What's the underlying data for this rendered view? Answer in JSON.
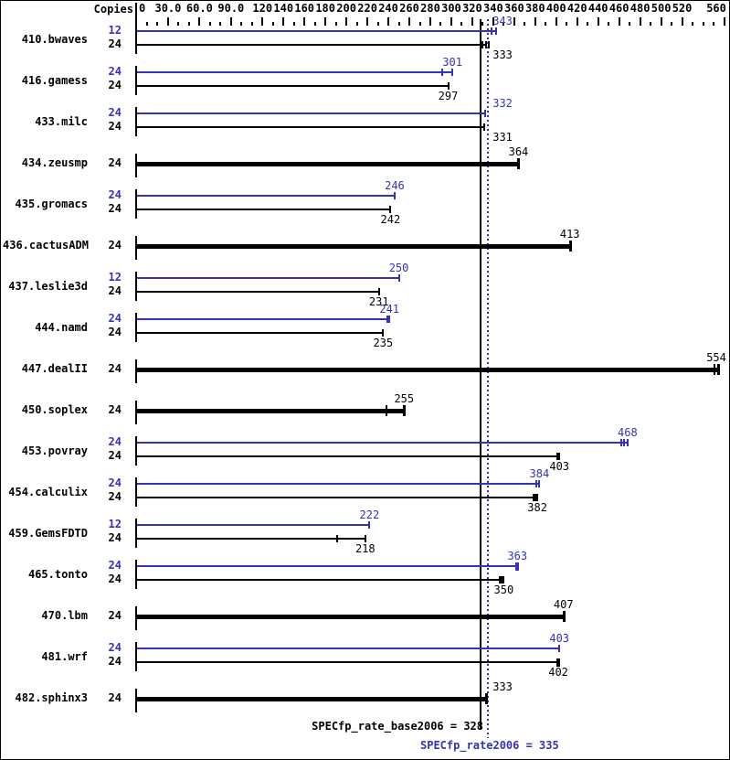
{
  "header": {
    "copies_label": "Copies"
  },
  "colors": {
    "peak": "#3333b8",
    "base": "#000000",
    "background": "#ffffff",
    "border": "#000000"
  },
  "footer": {
    "base_text": "SPECfp_rate_base2006 = 328",
    "peak_text": "SPECfp_rate2006 = 335"
  },
  "chart_data": {
    "type": "bar",
    "orientation": "horizontal",
    "title": "",
    "xlabel": "",
    "ylabel": "",
    "x_axis": {
      "min": 0,
      "max": 560,
      "minor_tick_step": 10,
      "tick_labels": [
        {
          "value": 0,
          "label": "0"
        },
        {
          "value": 30,
          "label": "30.0"
        },
        {
          "value": 60,
          "label": "60.0"
        },
        {
          "value": 90,
          "label": "90.0"
        },
        {
          "value": 120,
          "label": "120"
        },
        {
          "value": 140,
          "label": "140"
        },
        {
          "value": 160,
          "label": "160"
        },
        {
          "value": 180,
          "label": "180"
        },
        {
          "value": 200,
          "label": "200"
        },
        {
          "value": 220,
          "label": "220"
        },
        {
          "value": 240,
          "label": "240"
        },
        {
          "value": 260,
          "label": "260"
        },
        {
          "value": 280,
          "label": "280"
        },
        {
          "value": 300,
          "label": "300"
        },
        {
          "value": 320,
          "label": "320"
        },
        {
          "value": 340,
          "label": "340"
        },
        {
          "value": 360,
          "label": "360"
        },
        {
          "value": 380,
          "label": "380"
        },
        {
          "value": 400,
          "label": "400"
        },
        {
          "value": 420,
          "label": "420"
        },
        {
          "value": 440,
          "label": "440"
        },
        {
          "value": 460,
          "label": "460"
        },
        {
          "value": 480,
          "label": "480"
        },
        {
          "value": 500,
          "label": "500"
        },
        {
          "value": 520,
          "label": "520"
        },
        {
          "value": 560,
          "label": "560"
        }
      ]
    },
    "benchmarks": [
      {
        "name": "410.bwaves",
        "bars": [
          {
            "run": "peak",
            "copies": 12,
            "value": 343,
            "thick": false,
            "spread": [
              338
            ]
          },
          {
            "run": "base",
            "copies": 24,
            "value": 333,
            "thick": false,
            "spread": [
              330,
              336
            ]
          }
        ]
      },
      {
        "name": "416.gamess",
        "bars": [
          {
            "run": "peak",
            "copies": 24,
            "value": 301,
            "thick": false,
            "spread": [
              291
            ]
          },
          {
            "run": "base",
            "copies": 24,
            "value": 297,
            "thick": false,
            "spread": []
          }
        ]
      },
      {
        "name": "433.milc",
        "bars": [
          {
            "run": "peak",
            "copies": 24,
            "value": 332,
            "thick": false,
            "spread": []
          },
          {
            "run": "base",
            "copies": 24,
            "value": 331,
            "thick": false,
            "spread": []
          }
        ]
      },
      {
        "name": "434.zeusmp",
        "bars": [
          {
            "run": "base",
            "copies": 24,
            "value": 364,
            "thick": true,
            "spread": []
          }
        ]
      },
      {
        "name": "435.gromacs",
        "bars": [
          {
            "run": "peak",
            "copies": 24,
            "value": 246,
            "thick": false,
            "spread": []
          },
          {
            "run": "base",
            "copies": 24,
            "value": 242,
            "thick": false,
            "spread": []
          }
        ]
      },
      {
        "name": "436.cactusADM",
        "bars": [
          {
            "run": "base",
            "copies": 24,
            "value": 413,
            "thick": true,
            "spread": []
          }
        ]
      },
      {
        "name": "437.leslie3d",
        "bars": [
          {
            "run": "peak",
            "copies": 12,
            "value": 250,
            "thick": false,
            "spread": []
          },
          {
            "run": "base",
            "copies": 24,
            "value": 231,
            "thick": false,
            "spread": []
          }
        ]
      },
      {
        "name": "444.namd",
        "bars": [
          {
            "run": "peak",
            "copies": 24,
            "value": 241,
            "thick": false,
            "spread": [
              239
            ]
          },
          {
            "run": "base",
            "copies": 24,
            "value": 235,
            "thick": false,
            "spread": []
          }
        ]
      },
      {
        "name": "447.dealII",
        "bars": [
          {
            "run": "base",
            "copies": 24,
            "value": 554,
            "thick": true,
            "spread": [
              551
            ]
          }
        ]
      },
      {
        "name": "450.soplex",
        "bars": [
          {
            "run": "base",
            "copies": 24,
            "value": 255,
            "thick": true,
            "spread": [
              238
            ]
          }
        ]
      },
      {
        "name": "453.povray",
        "bars": [
          {
            "run": "peak",
            "copies": 24,
            "value": 468,
            "thick": false,
            "spread": [
              462,
              465
            ]
          },
          {
            "run": "base",
            "copies": 24,
            "value": 403,
            "thick": false,
            "spread": [
              401
            ]
          }
        ]
      },
      {
        "name": "454.calculix",
        "bars": [
          {
            "run": "peak",
            "copies": 24,
            "value": 384,
            "thick": false,
            "spread": [
              381
            ]
          },
          {
            "run": "base",
            "copies": 24,
            "value": 382,
            "thick": false,
            "spread": [
              378,
              380
            ]
          }
        ]
      },
      {
        "name": "459.GemsFDTD",
        "bars": [
          {
            "run": "peak",
            "copies": 12,
            "value": 222,
            "thick": false,
            "spread": []
          },
          {
            "run": "base",
            "copies": 24,
            "value": 218,
            "thick": false,
            "spread": [
              191
            ]
          }
        ]
      },
      {
        "name": "465.tonto",
        "bars": [
          {
            "run": "peak",
            "copies": 24,
            "value": 363,
            "thick": false,
            "spread": [],
            "bold_end": true
          },
          {
            "run": "base",
            "copies": 24,
            "value": 350,
            "thick": false,
            "spread": [
              346,
              348
            ]
          }
        ]
      },
      {
        "name": "470.lbm",
        "bars": [
          {
            "run": "base",
            "copies": 24,
            "value": 407,
            "thick": true,
            "spread": []
          }
        ]
      },
      {
        "name": "481.wrf",
        "bars": [
          {
            "run": "peak",
            "copies": 24,
            "value": 403,
            "thick": false,
            "spread": []
          },
          {
            "run": "base",
            "copies": 24,
            "value": 402,
            "thick": false,
            "spread": [],
            "bold_end": true
          }
        ]
      },
      {
        "name": "482.sphinx3",
        "bars": [
          {
            "run": "base",
            "copies": 24,
            "value": 333,
            "thick": true,
            "spread": []
          }
        ]
      }
    ],
    "reference_lines": [
      {
        "name": "base-rate",
        "value": 328,
        "style": "solid",
        "color": "#000000",
        "label": "SPECfp_rate_base2006 = 328"
      },
      {
        "name": "peak-rate",
        "value": 335,
        "style": "dotted",
        "color": "#3333b8",
        "label": "SPECfp_rate2006 = 335"
      }
    ]
  }
}
